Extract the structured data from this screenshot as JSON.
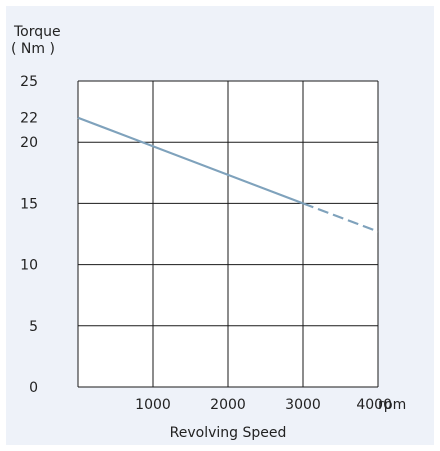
{
  "chart_data": {
    "type": "line",
    "title": "",
    "ylabel_line1": "Torque",
    "ylabel_line2": "( Nm )",
    "xlabel": "Revolving Speed",
    "x_unit": "rpm",
    "xlim": [
      0,
      4000
    ],
    "ylim": [
      0,
      25
    ],
    "grid": true,
    "x_ticks": [
      {
        "value": 1000,
        "label": "1000"
      },
      {
        "value": 2000,
        "label": "2000"
      },
      {
        "value": 3000,
        "label": "3000"
      },
      {
        "value": 4000,
        "label": "4000"
      }
    ],
    "y_ticks": [
      {
        "value": 0,
        "label": "0"
      },
      {
        "value": 5,
        "label": "5"
      },
      {
        "value": 10,
        "label": "10"
      },
      {
        "value": 15,
        "label": "15"
      },
      {
        "value": 20,
        "label": "20"
      },
      {
        "value": 22,
        "label": "22"
      },
      {
        "value": 25,
        "label": "25"
      }
    ],
    "series": [
      {
        "style": "solid",
        "color": "#7fa2bc",
        "x": [
          0,
          3000
        ],
        "y": [
          22,
          15
        ]
      },
      {
        "style": "dashed",
        "color": "#7fa2bc",
        "x": [
          3000,
          4000
        ],
        "y": [
          15,
          12.7
        ]
      }
    ],
    "colors": {
      "background": "#eef2f9",
      "plot_area": "#ffffff",
      "grid": "#1a1a1a"
    }
  }
}
